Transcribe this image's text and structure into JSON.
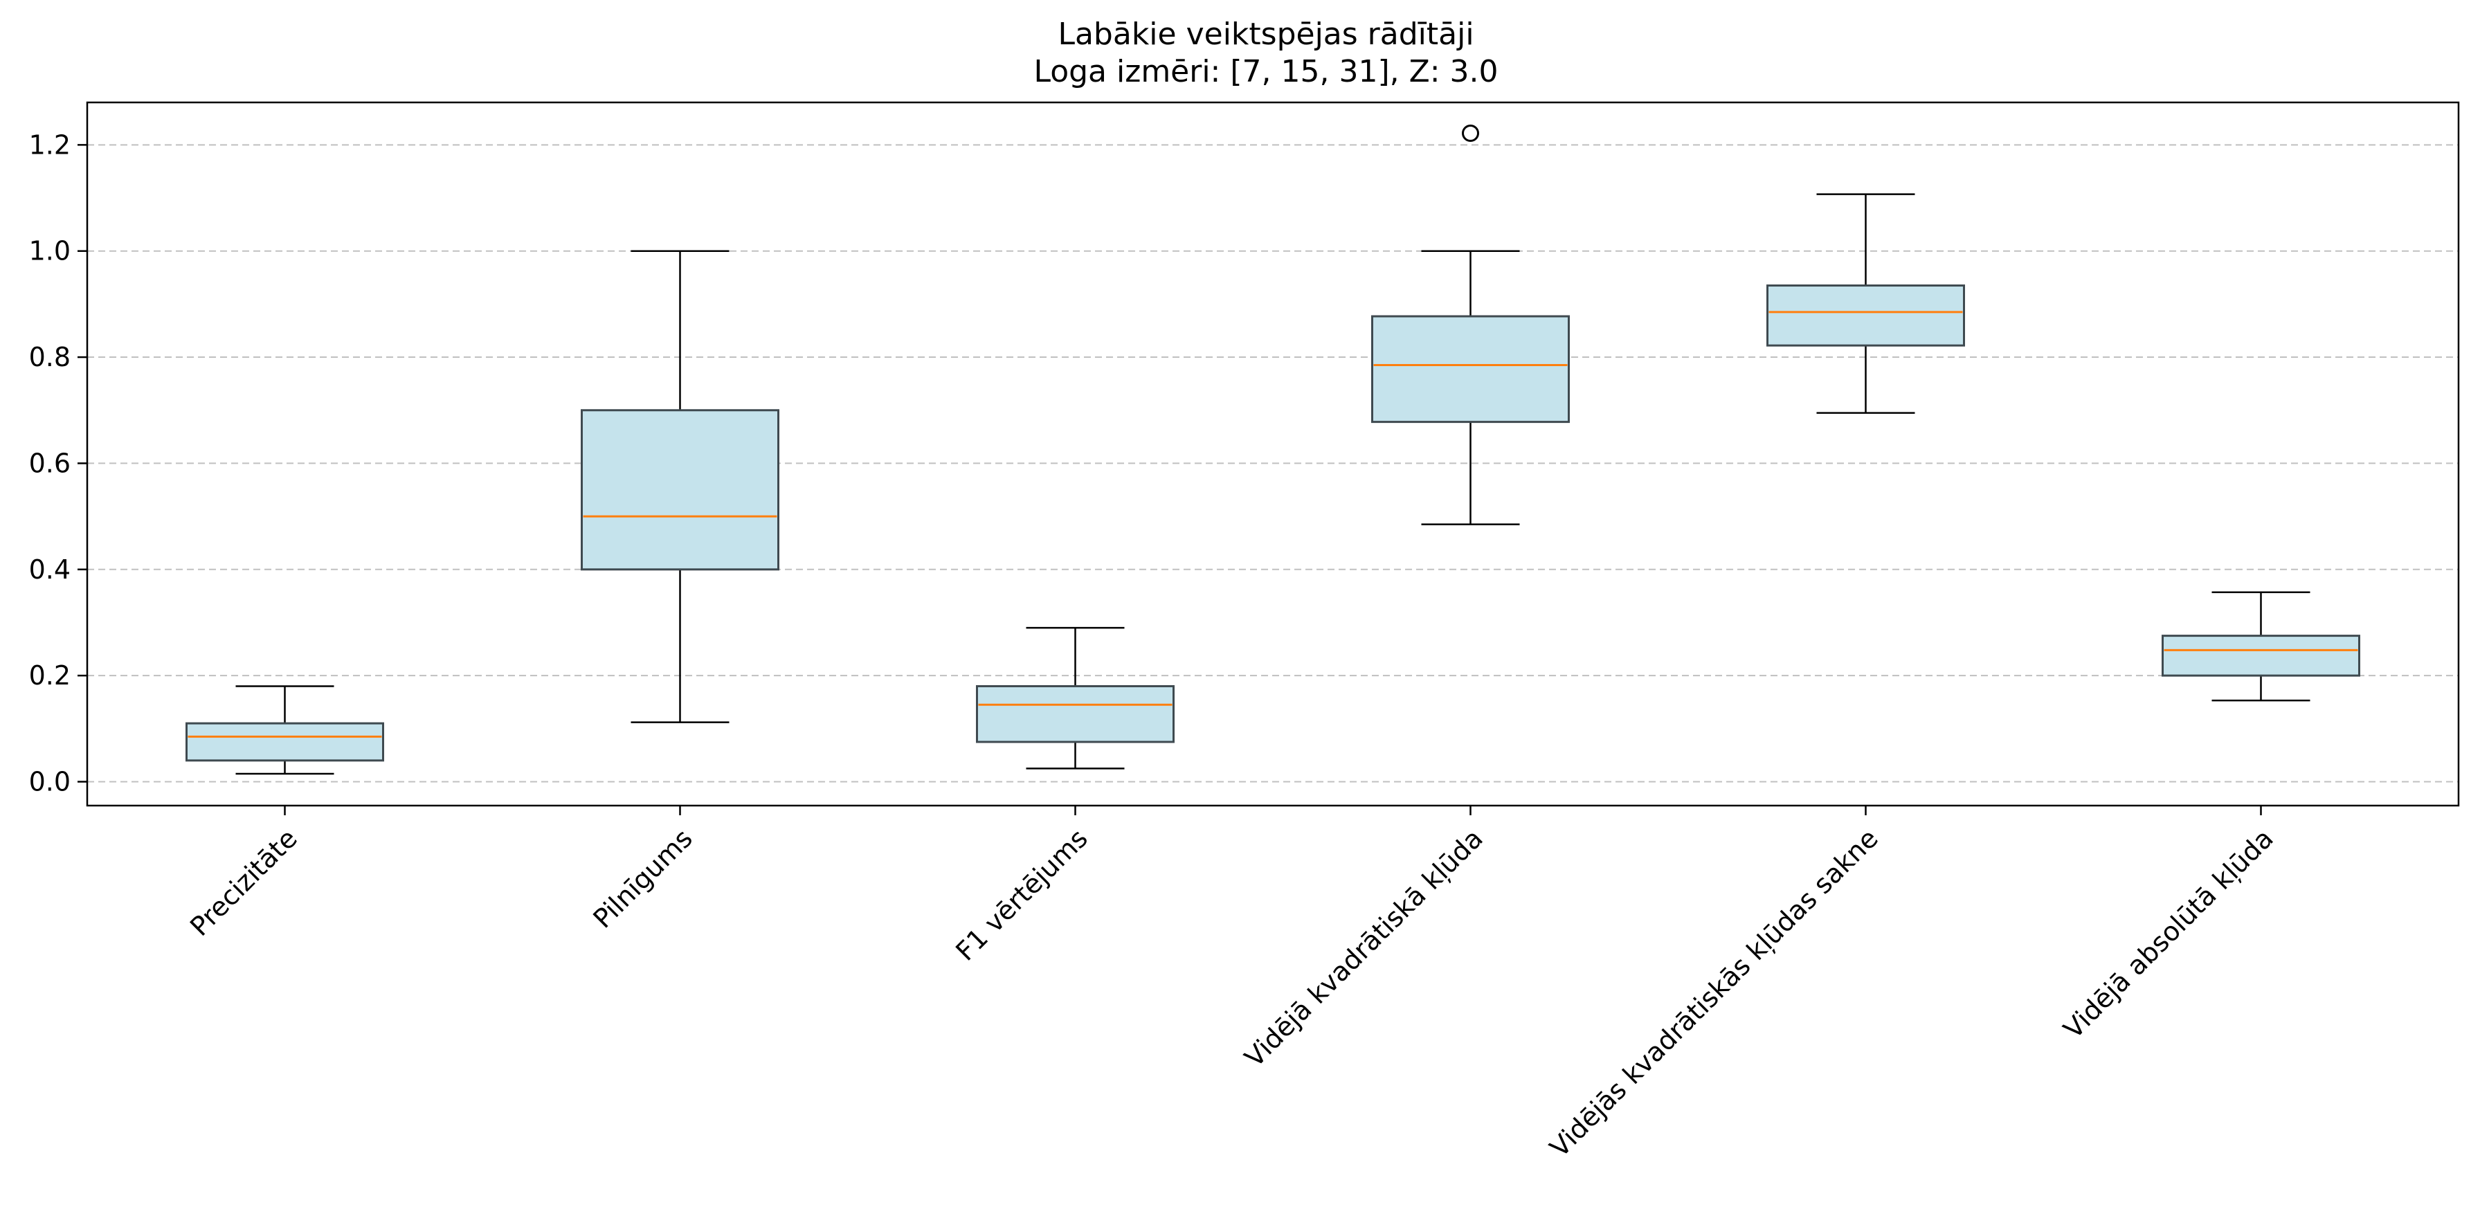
{
  "chart_data": {
    "type": "box",
    "title": "Labākie veiktspējas rādītāji",
    "subtitle": "Loga izmēri: [7, 15, 31], Z: 3.0",
    "xlabel": "",
    "ylabel": "",
    "ylim": [
      -0.045,
      1.28
    ],
    "yticks": [
      0.0,
      0.2,
      0.4,
      0.6,
      0.8,
      1.0,
      1.2
    ],
    "ytick_labels": [
      "0.0",
      "0.2",
      "0.4",
      "0.6",
      "0.8",
      "1.0",
      "1.2"
    ],
    "grid": "horizontal dashed",
    "categories": [
      "Precizitāte",
      "Pilnīgums",
      "F1 vērtējums",
      "Vidējā kvadrātiskā kļūda",
      "Vidējās kvadrātiskās kļūdas sakne",
      "Vidējā absolūtā kļūda"
    ],
    "boxes": [
      {
        "whisker_low": 0.015,
        "q1": 0.04,
        "median": 0.085,
        "q3": 0.11,
        "whisker_high": 0.18,
        "outliers": []
      },
      {
        "whisker_low": 0.112,
        "q1": 0.4,
        "median": 0.5,
        "q3": 0.7,
        "whisker_high": 1.0,
        "outliers": []
      },
      {
        "whisker_low": 0.025,
        "q1": 0.075,
        "median": 0.145,
        "q3": 0.18,
        "whisker_high": 0.29,
        "outliers": []
      },
      {
        "whisker_low": 0.485,
        "q1": 0.678,
        "median": 0.785,
        "q3": 0.877,
        "whisker_high": 1.0,
        "outliers": [
          1.222
        ]
      },
      {
        "whisker_low": 0.695,
        "q1": 0.822,
        "median": 0.885,
        "q3": 0.935,
        "whisker_high": 1.107,
        "outliers": []
      },
      {
        "whisker_low": 0.153,
        "q1": 0.2,
        "median": 0.248,
        "q3": 0.275,
        "whisker_high": 0.357,
        "outliers": []
      }
    ],
    "colors": {
      "box_fill": "#c5e3ec",
      "box_edge": "#3f4a50",
      "median": "#ff7f0e",
      "whisker": "#000000",
      "grid": "#c0c0c0"
    }
  }
}
